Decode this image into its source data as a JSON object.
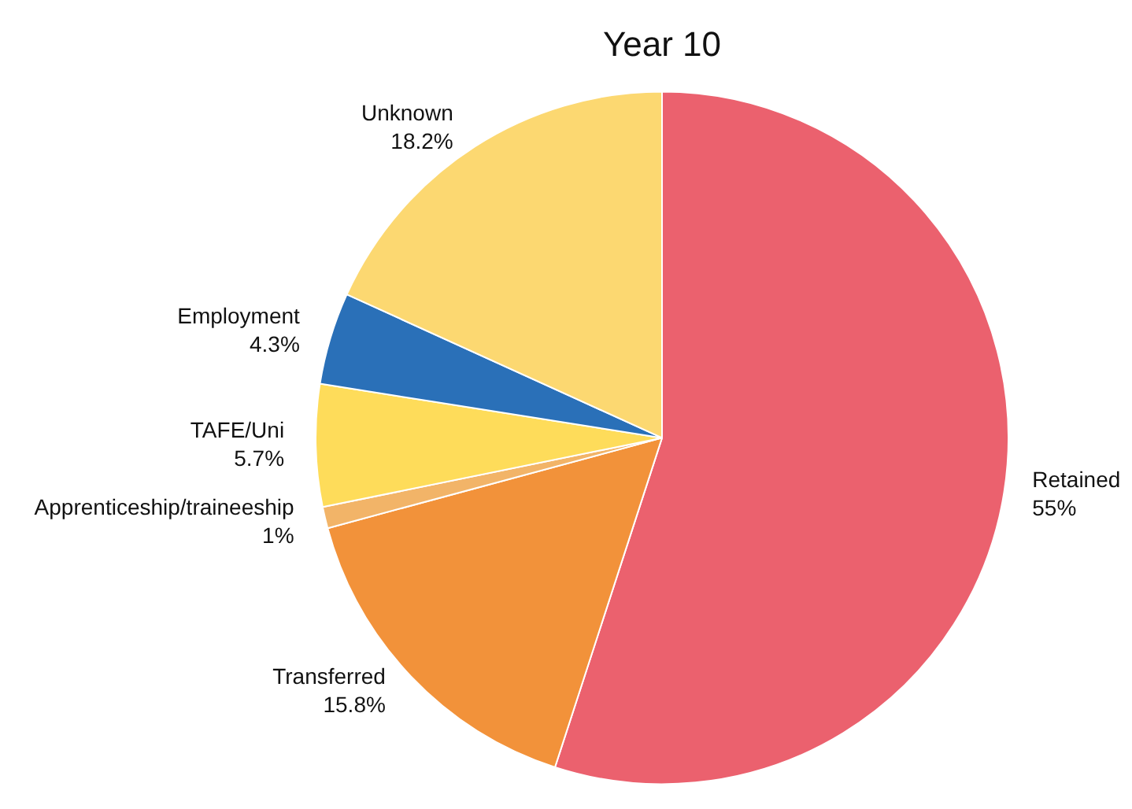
{
  "chart_data": {
    "type": "pie",
    "title": "Year 10",
    "categories": [
      "Retained",
      "Transferred",
      "Apprenticeship/traineeship",
      "TAFE/Uni",
      "Employment",
      "Unknown"
    ],
    "values": [
      55,
      15.8,
      1,
      5.7,
      4.3,
      18.2
    ],
    "value_labels": [
      "55%",
      "15.8%",
      "1%",
      "5.7%",
      "4.3%",
      "18.2%"
    ],
    "colors": [
      "#eb616e",
      "#f2923a",
      "#f2b468",
      "#fedc5a",
      "#2a70b8",
      "#fcd871"
    ],
    "legend": false
  }
}
